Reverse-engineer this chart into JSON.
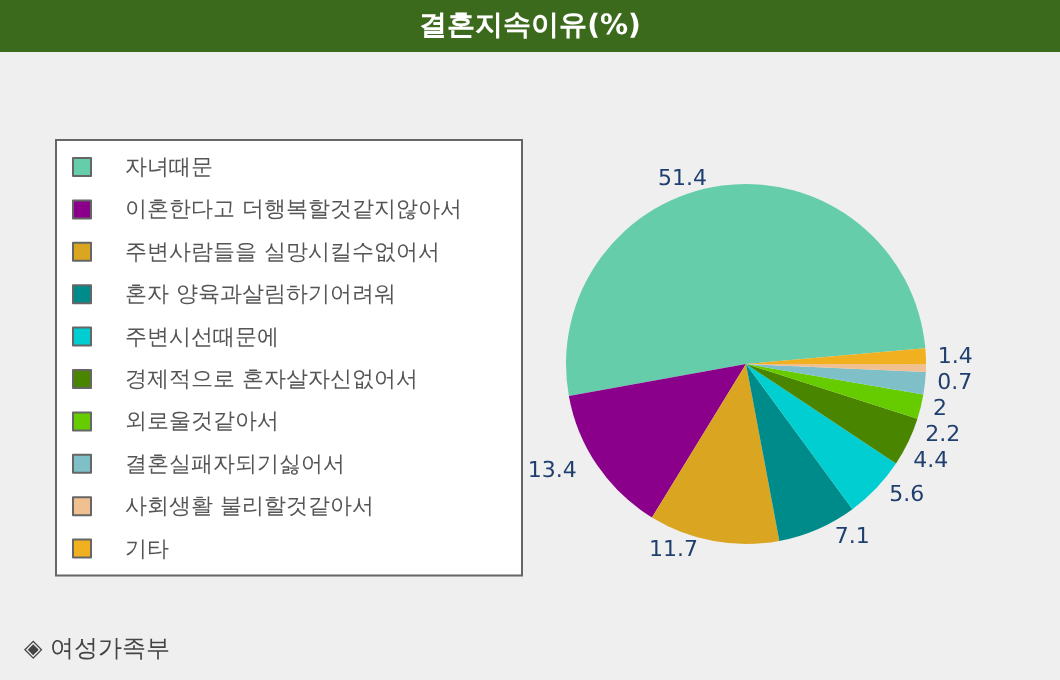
{
  "chart_data": {
    "type": "pie",
    "title": "결혼지속이유(%)",
    "categories": [
      "자녀때문",
      "이혼한다고 더행복할것같지않아서",
      "주변사람들을 실망시킬수없어서",
      "혼자 양육과살림하기어려워",
      "주변시선때문에",
      "경제적으로 혼자살자신없어서",
      "외로울것같아서",
      "결혼실패자되기싫어서",
      "사회생활 불리할것같아서",
      "기타"
    ],
    "values": [
      51.4,
      13.4,
      11.7,
      7.1,
      5.6,
      4.4,
      2.2,
      2,
      0.7,
      1.4
    ],
    "colors": [
      "#66cdaa",
      "#8b008b",
      "#daa520",
      "#008b8b",
      "#00ced1",
      "#4a8500",
      "#66cc00",
      "#7fbfc8",
      "#f0c090",
      "#f0b020"
    ],
    "data_labels": true,
    "legend": "left",
    "annotations": [
      "◈ 여성가족부"
    ]
  }
}
